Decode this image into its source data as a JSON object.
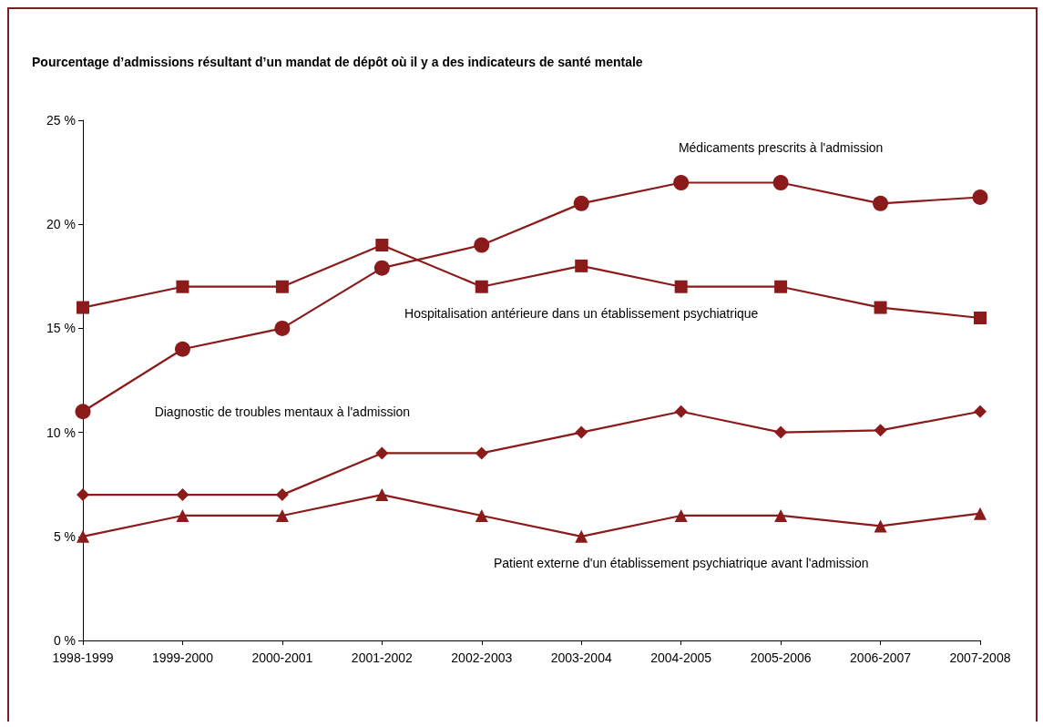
{
  "chart_data": {
    "type": "line",
    "title": "Pourcentage d’admissions résultant d’un mandat de dépôt où il y a des indicateurs de santé mentale",
    "categories": [
      "1998-1999",
      "1999-2000",
      "2000-2001",
      "2001-2002",
      "2002-2003",
      "2003-2004",
      "2004-2005",
      "2005-2006",
      "2006-2007",
      "2007-2008"
    ],
    "series": [
      {
        "name": "Médicaments prescrits à l'admission",
        "color": "#8b1a1a",
        "marker": "circle",
        "values": [
          11,
          14,
          15,
          17.9,
          19,
          21,
          22,
          22,
          21,
          21.3
        ]
      },
      {
        "name": "Hospitalisation antérieure dans un établissement psychiatrique",
        "color": "#8b1a1a",
        "marker": "square",
        "values": [
          16,
          17,
          17,
          19,
          17,
          18,
          17,
          17,
          16,
          15.5
        ]
      },
      {
        "name": "Diagnostic de troubles mentaux à l'admission",
        "color": "#8b1a1a",
        "marker": "diamond",
        "values": [
          7,
          7,
          7,
          9,
          9,
          10,
          11,
          10,
          10.1,
          11
        ]
      },
      {
        "name": "Patient externe d'un établissement psychiatrique avant l'admission",
        "color": "#8b1a1a",
        "marker": "triangle",
        "values": [
          5,
          6,
          6,
          7,
          6,
          5,
          6,
          6,
          5.5,
          6.1
        ]
      }
    ],
    "ylim": [
      0,
      25
    ],
    "yticks": [
      {
        "value": 0,
        "label": "0 %"
      },
      {
        "value": 5,
        "label": "5 %"
      },
      {
        "value": 10,
        "label": "10 %"
      },
      {
        "value": 15,
        "label": "15 %"
      },
      {
        "value": 20,
        "label": "20 %"
      },
      {
        "value": 25,
        "label": "25 %"
      }
    ],
    "grid": false,
    "legend": false,
    "line_style": "solid"
  }
}
